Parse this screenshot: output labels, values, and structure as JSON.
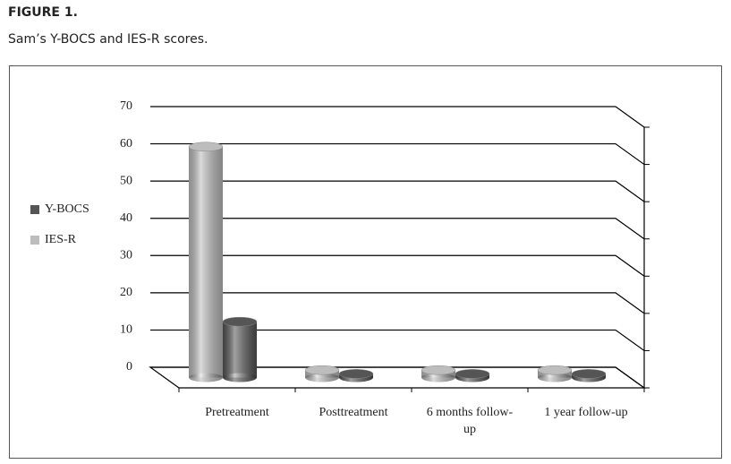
{
  "header": {
    "figure": "FIGURE 1.",
    "caption": "Sam’s Y-BOCS and IES-R scores."
  },
  "chart_data": {
    "type": "bar3d",
    "categories": [
      "Pretreatment",
      "Posttreatment",
      "6 months follow-up",
      "1 year follow-up"
    ],
    "series": [
      {
        "name": "IES-R",
        "color": "#bdbdbd",
        "values": [
          62,
          2,
          2,
          2
        ]
      },
      {
        "name": "Y-BOCS",
        "color": "#555555",
        "values": [
          15,
          1,
          1,
          1
        ]
      }
    ],
    "legend_order": [
      "Y-BOCS",
      "IES-R"
    ],
    "legend": "left",
    "ylim": [
      0,
      70
    ],
    "yticks": [
      0,
      10,
      20,
      30,
      40,
      50,
      60,
      70
    ],
    "grid": true
  }
}
